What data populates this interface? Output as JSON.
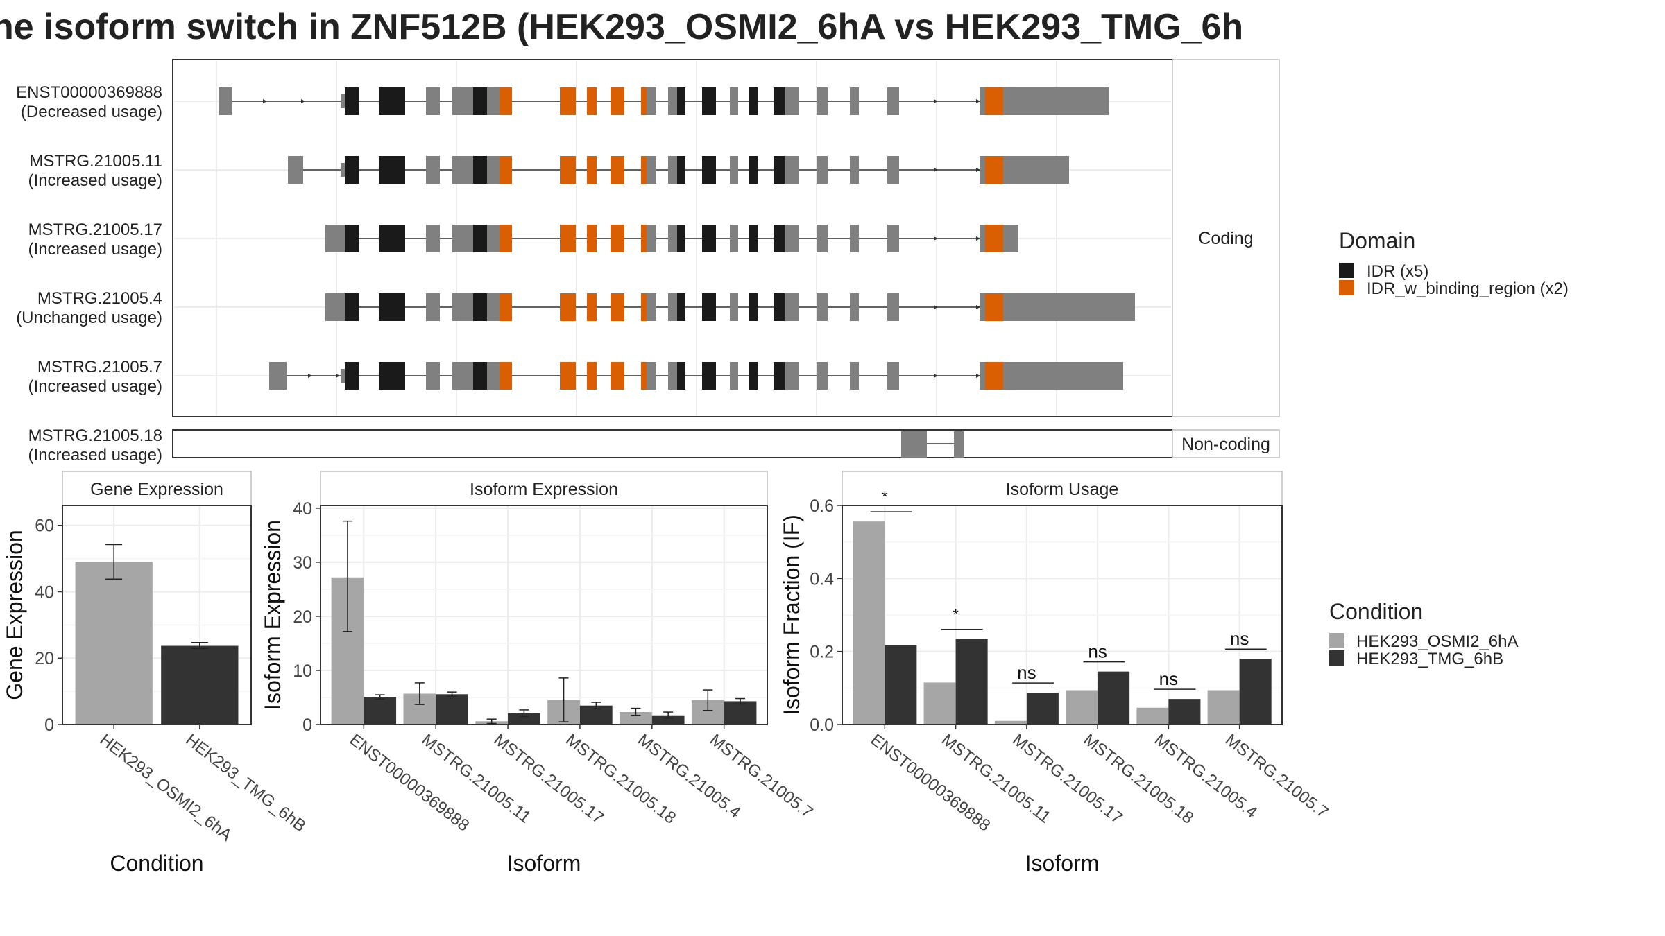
{
  "title": "ne isoform switch in ZNF512B (HEK293_OSMI2_6hA vs HEK293_TMG_6h",
  "chart_data": [
    {
      "type": "gene-structure",
      "strip_coding": "Coding",
      "strip_noncoding": "Non-coding",
      "transcripts": [
        {
          "id": "ENST00000369888",
          "usage": "(Decreased usage)",
          "coding": true
        },
        {
          "id": "MSTRG.21005.11",
          "usage": "(Increased usage)",
          "coding": true
        },
        {
          "id": "MSTRG.21005.17",
          "usage": "(Increased usage)",
          "coding": true
        },
        {
          "id": "MSTRG.21005.4",
          "usage": "(Unchanged usage)",
          "coding": true
        },
        {
          "id": "MSTRG.21005.7",
          "usage": "(Increased usage)",
          "coding": true
        },
        {
          "id": "MSTRG.21005.18",
          "usage": "(Increased usage)",
          "coding": false
        }
      ],
      "legend": {
        "title": "Domain",
        "items": [
          {
            "label": "IDR (x5)",
            "color": "#1a1a1a"
          },
          {
            "label": "IDR_w_binding_region (x2)",
            "color": "#d95f02"
          }
        ]
      },
      "colors": {
        "exon": "#808080",
        "idr": "#1a1a1a",
        "binding": "#d95f02"
      }
    },
    {
      "type": "bar",
      "strip": "Gene Expression",
      "xlabel": "Condition",
      "ylabel": "Gene Expression",
      "categories": [
        "HEK293_OSMI2_6hA",
        "HEK293_TMG_6hB"
      ],
      "values": [
        49,
        23.7
      ],
      "errors": [
        [
          43.8,
          54.2
        ],
        [
          22.9,
          24.7
        ]
      ],
      "yticks": [
        0,
        20,
        40,
        60
      ],
      "ylim": [
        0,
        66
      ]
    },
    {
      "type": "bar",
      "strip": "Isoform Expression",
      "xlabel": "Isoform",
      "ylabel": "Isoform Expression",
      "categories": [
        "ENST00000369888",
        "MSTRG.21005.11",
        "MSTRG.21005.17",
        "MSTRG.21005.18",
        "MSTRG.21005.4",
        "MSTRG.21005.7"
      ],
      "series": [
        {
          "name": "HEK293_OSMI2_6hA",
          "values": [
            27.2,
            5.7,
            0.6,
            4.5,
            2.3,
            4.5
          ],
          "errors": [
            [
              17.2,
              37.6
            ],
            [
              3.7,
              7.7
            ],
            [
              0.2,
              1.0
            ],
            [
              0.5,
              8.6
            ],
            [
              1.7,
              3.0
            ],
            [
              2.6,
              6.4
            ]
          ]
        },
        {
          "name": "HEK293_TMG_6hB",
          "values": [
            5.1,
            5.6,
            2.1,
            3.5,
            1.7,
            4.3
          ],
          "errors": [
            [
              4.7,
              5.5
            ],
            [
              5.2,
              6.0
            ],
            [
              1.5,
              2.7
            ],
            [
              2.9,
              4.1
            ],
            [
              1.2,
              2.3
            ],
            [
              3.8,
              4.8
            ]
          ]
        }
      ],
      "yticks": [
        0,
        10,
        20,
        30,
        40
      ],
      "ylim": [
        0,
        40.5
      ]
    },
    {
      "type": "bar",
      "strip": "Isoform Usage",
      "xlabel": "Isoform",
      "ylabel": "Isoform Fraction (IF)",
      "categories": [
        "ENST00000369888",
        "MSTRG.21005.11",
        "MSTRG.21005.17",
        "MSTRG.21005.18",
        "MSTRG.21005.4",
        "MSTRG.21005.7"
      ],
      "series": [
        {
          "name": "HEK293_OSMI2_6hA",
          "values": [
            0.556,
            0.115,
            0.01,
            0.094,
            0.046,
            0.094
          ]
        },
        {
          "name": "HEK293_TMG_6hB",
          "values": [
            0.217,
            0.234,
            0.087,
            0.145,
            0.07,
            0.18
          ]
        }
      ],
      "significance": [
        "*",
        "*",
        "ns",
        "ns",
        "ns",
        "ns"
      ],
      "yticks": [
        0.0,
        0.2,
        0.4,
        0.6
      ],
      "ytick_labels": [
        "0.0",
        "0.2",
        "0.4",
        "0.6"
      ],
      "ylim": [
        0,
        0.6
      ],
      "legend": {
        "title": "Condition",
        "items": [
          {
            "label": "HEK293_OSMI2_6hA",
            "color": "#a6a6a6"
          },
          {
            "label": "HEK293_TMG_6hB",
            "color": "#333333"
          }
        ]
      }
    }
  ]
}
